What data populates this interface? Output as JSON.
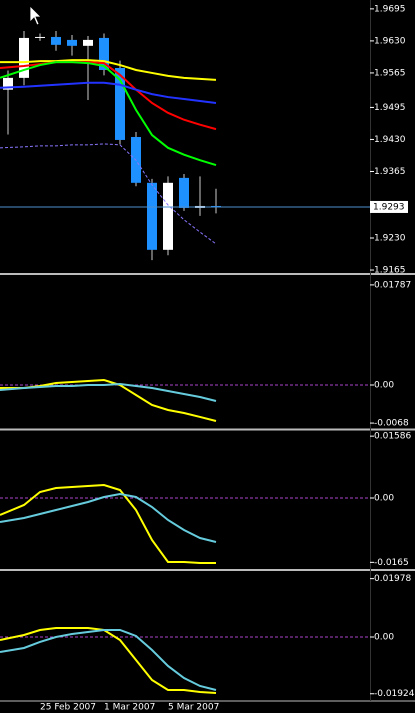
{
  "chart_data": [
    {
      "type": "candlestick",
      "open": [
        1.9531,
        1.9555,
        1.9636,
        1.9638,
        1.9632,
        1.962,
        1.9636,
        1.9575,
        1.9435,
        1.9342,
        1.9206,
        1.9352,
        1.9291,
        1.9295
      ],
      "high": [
        1.957,
        1.965,
        1.9645,
        1.965,
        1.9642,
        1.964,
        1.9645,
        1.959,
        1.9445,
        1.935,
        1.9355,
        1.936,
        1.9355,
        1.933
      ],
      "low": [
        1.944,
        1.954,
        1.963,
        1.961,
        1.96,
        1.951,
        1.956,
        1.942,
        1.9335,
        1.9185,
        1.9195,
        1.9285,
        1.9275,
        1.928
      ],
      "close": [
        1.9555,
        1.9636,
        1.9638,
        1.9622,
        1.962,
        1.9632,
        1.9571,
        1.9429,
        1.9342,
        1.9206,
        1.9342,
        1.9291,
        1.9295,
        1.9293
      ],
      "up_color": "#ffffff",
      "down_color": "#1e90ff",
      "wick_color": "#cccccc",
      "series": [
        {
          "color": "#ffff00",
          "dash": false,
          "values": [
            1.9587,
            1.9587,
            1.9589,
            1.9589,
            1.9591,
            1.9591,
            1.9589,
            1.9581,
            1.9571,
            1.9565,
            1.9559,
            1.9555,
            1.9553,
            1.9551
          ]
        },
        {
          "color": "#ff0000",
          "dash": false,
          "values": [
            1.9575,
            1.9579,
            1.9583,
            1.9587,
            1.9587,
            1.9587,
            1.9585,
            1.9561,
            1.9531,
            1.9504,
            1.9484,
            1.947,
            1.946,
            1.9451
          ]
        },
        {
          "color": "#00ff00",
          "dash": false,
          "values": [
            1.9555,
            1.9571,
            1.9581,
            1.9587,
            1.9587,
            1.9585,
            1.9579,
            1.9551,
            1.949,
            1.9439,
            1.9413,
            1.9399,
            1.9388,
            1.9378
          ]
        },
        {
          "color": "#2233ff",
          "dash": false,
          "values": [
            1.9535,
            1.9537,
            1.9539,
            1.9541,
            1.9543,
            1.9545,
            1.9545,
            1.9541,
            1.9531,
            1.9522,
            1.9516,
            1.9512,
            1.9508,
            1.9504
          ]
        },
        {
          "color": "#8877ff",
          "dash": true,
          "values": [
            1.9413,
            1.9415,
            1.9417,
            1.9417,
            1.9419,
            1.9419,
            1.9421,
            1.9419,
            1.9388,
            1.9338,
            1.9297,
            1.9267,
            1.9242,
            1.9218
          ]
        }
      ],
      "ylim": [
        1.9161,
        1.9713
      ],
      "yticks": [
        1.9695,
        {
          "value": 1.963,
          "label": "1.9630"
        },
        1.9565,
        1.9495,
        {
          "value": 1.943,
          "label": "1.9430"
        },
        1.9365,
        {
          "value": 1.923,
          "label": "1.9230"
        },
        1.9165
      ],
      "price_line": {
        "value": 1.9293,
        "label": "1.9293",
        "color": "#4f8fd0"
      }
    },
    {
      "type": "line",
      "ylim": [
        -0.00768,
        0.01946
      ],
      "yticks": [
        0.01787,
        {
          "value": 0,
          "label": "0.00"
        },
        -0.0068
      ],
      "zero_line_color": "#aa44cc",
      "series": [
        {
          "color": "#ffff00",
          "values": [
            -0.00054,
            -0.00054,
            -0.00018,
            0.00036,
            0.00054,
            0.00071,
            0.00089,
            0,
            -0.00179,
            -0.00357,
            -0.00446,
            -0.005,
            -0.00571,
            -0.00643
          ]
        },
        {
          "color": "#66ccdd",
          "values": [
            -0.00089,
            -0.00054,
            -0.00036,
            -0.00018,
            -0.00018,
            0,
            0,
            0.00018,
            -0.00018,
            -0.00054,
            -0.00107,
            -0.00161,
            -0.00214,
            -0.00286
          ]
        }
      ]
    },
    {
      "type": "line",
      "ylim": [
        -0.01795,
        0.01718
      ],
      "yticks": [
        0.01586,
        {
          "value": 0,
          "label": "0.00"
        },
        -0.0165
      ],
      "zero_line_color": "#aa44cc",
      "series": [
        {
          "color": "#ffff00",
          "values": [
            -0.00436,
            -0.00179,
            0.00154,
            0.00256,
            0.00282,
            0.00308,
            0.00333,
            0.00205,
            -0.00308,
            -0.01077,
            -0.01641,
            -0.01641,
            -0.01667,
            -0.01667
          ]
        },
        {
          "color": "#66ccdd",
          "values": [
            -0.00615,
            -0.00513,
            -0.0041,
            -0.00308,
            -0.00205,
            -0.00103,
            0.00026,
            0.00103,
            0.00026,
            -0.00231,
            -0.00564,
            -0.00821,
            -0.01026,
            -0.01128
          ]
        }
      ]
    },
    {
      "type": "line",
      "ylim": [
        -0.02136,
        0.02203
      ],
      "yticks": [
        0.01978,
        {
          "value": 0,
          "label": "0.00"
        },
        -0.01924
      ],
      "zero_line_color": "#aa44cc",
      "categories": [
        null,
        null,
        "25 Feb 2007",
        null,
        null,
        null,
        "1 Mar 2007",
        null,
        null,
        null,
        "5 Mar 2007",
        null,
        null,
        null
      ],
      "series": [
        {
          "color": "#ffff00",
          "values": [
            -0.00102,
            0.00068,
            0.00237,
            0.00305,
            0.00305,
            0.00305,
            0.00237,
            -0.00102,
            -0.0078,
            -0.01458,
            -0.01797,
            -0.01797,
            -0.01864,
            -0.01898
          ]
        },
        {
          "color": "#66ccdd",
          "values": [
            -0.00508,
            -0.00373,
            -0.00169,
            0,
            0.00102,
            0.00169,
            0.00237,
            0.00237,
            0.00034,
            -0.00441,
            -0.00983,
            -0.0139,
            -0.01661,
            -0.01797
          ]
        }
      ]
    }
  ]
}
